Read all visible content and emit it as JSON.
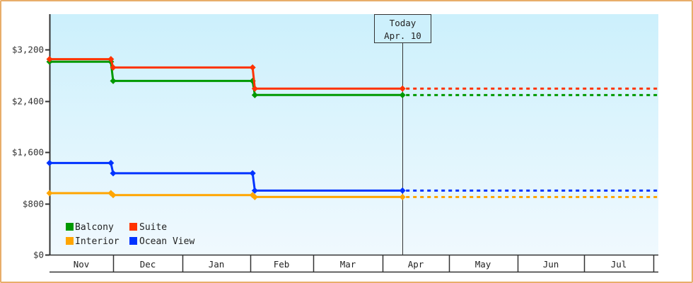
{
  "chart_data": {
    "type": "line",
    "title": "",
    "xlabel": "",
    "ylabel": "",
    "ylim": [
      0,
      3800
    ],
    "y_ticks": [
      0,
      800,
      1600,
      2400,
      3200
    ],
    "y_tick_labels": [
      "$0",
      "$800",
      "$1,600",
      "$2,400",
      "$3,200"
    ],
    "x_tick_labels": [
      "Nov",
      "Dec",
      "Jan",
      "Feb",
      "Mar",
      "Apr",
      "May",
      "Jun",
      "Jul"
    ],
    "grid": false,
    "legend_position": "bottom-left inside",
    "step": true,
    "today_marker": {
      "label": "Today",
      "date": "Apr. 10"
    },
    "projection_style": "dashed (flat from today to end of axis)",
    "series": [
      {
        "name": "Balcony",
        "color": "#009900",
        "points": [
          {
            "date": "Nov 2",
            "value": 3010
          },
          {
            "date": "Nov 30",
            "value": 3010
          },
          {
            "date": "Dec 1",
            "value": 2710
          },
          {
            "date": "Feb 2",
            "value": 2710
          },
          {
            "date": "Feb 3",
            "value": 2490
          },
          {
            "date": "Apr 10",
            "value": 2490
          }
        ]
      },
      {
        "name": "Suite",
        "color": "#ff3300",
        "points": [
          {
            "date": "Nov 2",
            "value": 3050
          },
          {
            "date": "Nov 30",
            "value": 3050
          },
          {
            "date": "Dec 1",
            "value": 2920
          },
          {
            "date": "Feb 2",
            "value": 2920
          },
          {
            "date": "Feb 3",
            "value": 2590
          },
          {
            "date": "Apr 10",
            "value": 2590
          }
        ]
      },
      {
        "name": "Interior",
        "color": "#ffa500",
        "points": [
          {
            "date": "Nov 2",
            "value": 960
          },
          {
            "date": "Nov 30",
            "value": 960
          },
          {
            "date": "Dec 1",
            "value": 930
          },
          {
            "date": "Feb 2",
            "value": 930
          },
          {
            "date": "Feb 3",
            "value": 900
          },
          {
            "date": "Apr 10",
            "value": 900
          }
        ]
      },
      {
        "name": "Ocean View",
        "color": "#0033ff",
        "points": [
          {
            "date": "Nov 2",
            "value": 1430
          },
          {
            "date": "Nov 30",
            "value": 1430
          },
          {
            "date": "Dec 1",
            "value": 1270
          },
          {
            "date": "Feb 2",
            "value": 1270
          },
          {
            "date": "Feb 3",
            "value": 1000
          },
          {
            "date": "Apr 10",
            "value": 1000
          }
        ]
      }
    ]
  },
  "colors": {
    "frame_border": "#e8ad6a",
    "plot_bg_top": "#ccf0fc",
    "plot_bg_bottom": "#f0f9fe",
    "axis": "#333333"
  },
  "today": {
    "title": "Today",
    "date": "Apr. 10"
  },
  "legend": [
    {
      "label": "Balcony",
      "color": "#009900"
    },
    {
      "label": "Suite",
      "color": "#ff3300"
    },
    {
      "label": "Interior",
      "color": "#ffa500"
    },
    {
      "label": "Ocean View",
      "color": "#0033ff"
    }
  ]
}
